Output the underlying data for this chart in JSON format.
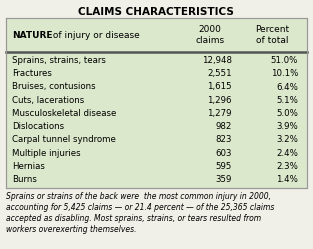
{
  "title": "CLAIMS CHARACTERISTICS",
  "header_col1_bold": "NATURE",
  "header_col1_rest": " of injury or disease",
  "header_col2": "2000\nclaims",
  "header_col3": "Percent\nof total",
  "rows": [
    [
      "Sprains, strains, tears",
      "12,948",
      "51.0%"
    ],
    [
      "Fractures",
      "2,551",
      "10.1%"
    ],
    [
      "Bruises, contusions",
      "1,615",
      "6.4%"
    ],
    [
      "Cuts, lacerations",
      "1,296",
      "5.1%"
    ],
    [
      "Musculoskeletal disease",
      "1,279",
      "5.0%"
    ],
    [
      "Dislocations",
      "982",
      "3.9%"
    ],
    [
      "Carpal tunnel syndrome",
      "823",
      "3.2%"
    ],
    [
      "Multiple injuries",
      "603",
      "2.4%"
    ],
    [
      "Hernias",
      "595",
      "2.3%"
    ],
    [
      "Burns",
      "359",
      "1.4%"
    ]
  ],
  "footnote": "Sprains or strains of the back were  the most common injury in 2000,\naccounting for 5,425 claims — or 21.4 percent — of the 25,365 claims\naccepted as disabling. Most sprains, strains, or tears resulted from\nworkers overexerting themselves.",
  "table_bg": "#dce8cc",
  "outer_bg": "#f0f0e8",
  "title_fontsize": 7.5,
  "header_fontsize": 6.5,
  "data_fontsize": 6.2,
  "footnote_fontsize": 5.5,
  "border_color": "#999999",
  "thick_line_color": "#555555"
}
